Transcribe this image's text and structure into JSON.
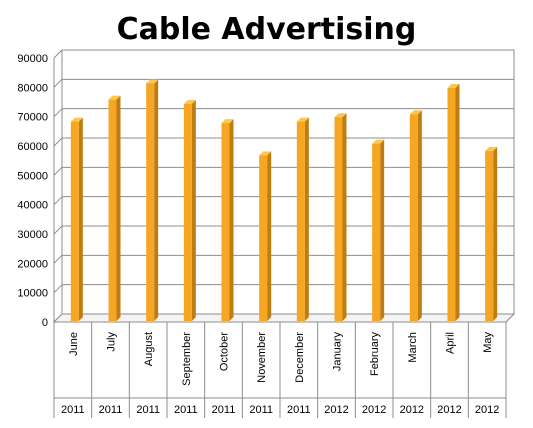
{
  "chart_data": {
    "type": "bar",
    "title": "Cable Advertising",
    "xlabel": "",
    "ylabel": "",
    "ylim": [
      0,
      90000
    ],
    "yticks": [
      "0",
      "10000",
      "20000",
      "30000",
      "40000",
      "50000",
      "60000",
      "70000",
      "80000",
      "90000"
    ],
    "grid": true,
    "categories": [
      "June",
      "July",
      "August",
      "September",
      "October",
      "November",
      "December",
      "January",
      "February",
      "March",
      "April",
      "May"
    ],
    "years": [
      "2011",
      "2011",
      "2011",
      "2011",
      "2011",
      "2011",
      "2011",
      "2012",
      "2012",
      "2012",
      "2012",
      "2012"
    ],
    "values": [
      69000,
      76500,
      82000,
      75000,
      68500,
      57500,
      69000,
      70500,
      61500,
      71500,
      80500,
      59000
    ],
    "colors": {
      "bar": "#F5A623",
      "bar_side": "#C07C10",
      "bar_top": "#FFC64D",
      "grid": "#8C8C8C"
    }
  }
}
